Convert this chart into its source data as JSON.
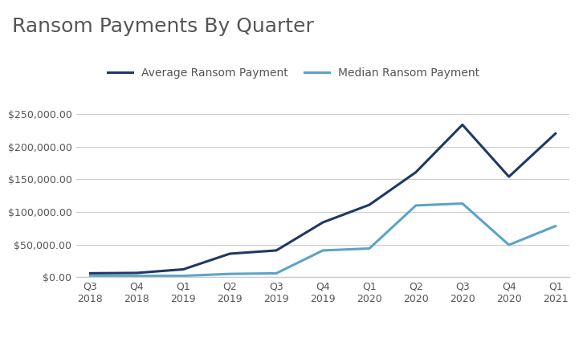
{
  "title": "Ransom Payments By Quarter",
  "categories": [
    "Q3\n2018",
    "Q4\n2018",
    "Q1\n2019",
    "Q2\n2019",
    "Q3\n2019",
    "Q4\n2019",
    "Q1\n2020",
    "Q2\n2020",
    "Q3\n2020",
    "Q4\n2020",
    "Q1\n2021"
  ],
  "average_values": [
    6000,
    6500,
    12000,
    36000,
    41000,
    84000,
    111000,
    161000,
    233817,
    154108,
    220298
  ],
  "median_values": [
    2000,
    2000,
    2000,
    5000,
    5900,
    41000,
    44000,
    110000,
    113000,
    49500,
    78398
  ],
  "avg_color": "#1F3864",
  "med_color": "#5BA3C9",
  "avg_label": "Average Ransom Payment",
  "med_label": "Median Ransom Payment",
  "ylim": [
    0,
    280000
  ],
  "yticks": [
    0,
    50000,
    100000,
    150000,
    200000,
    250000
  ],
  "background_color": "#ffffff",
  "grid_color": "#cccccc",
  "title_fontsize": 18,
  "legend_fontsize": 10,
  "tick_fontsize": 9,
  "line_width": 2.2
}
